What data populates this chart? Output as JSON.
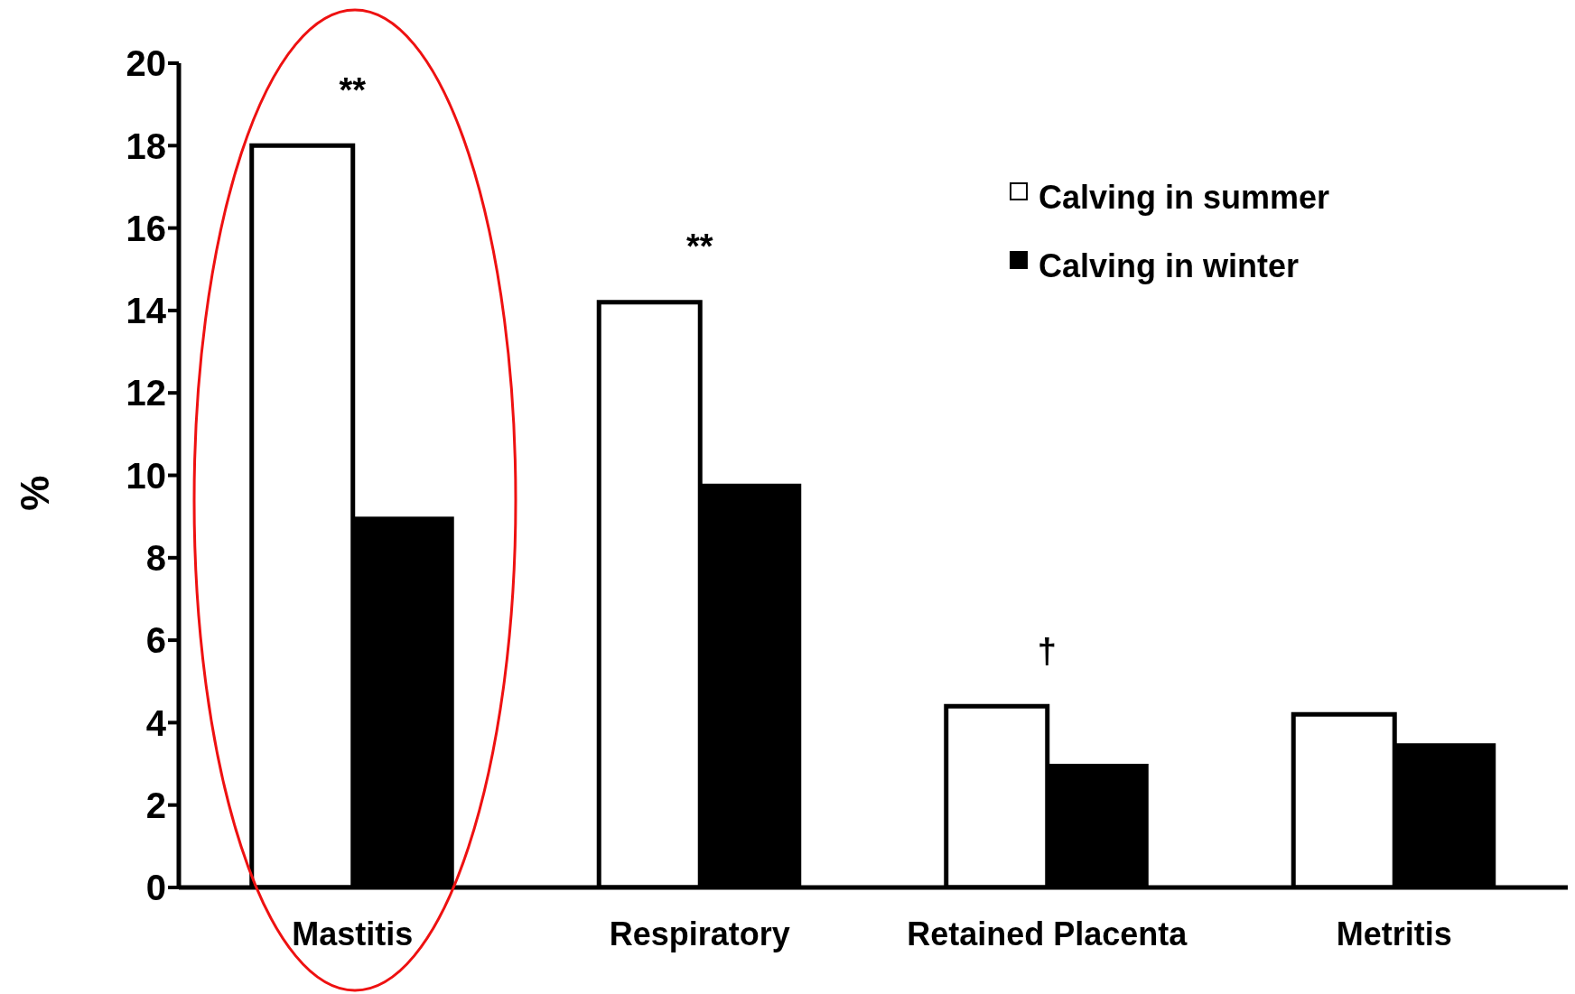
{
  "chart_data": {
    "type": "bar",
    "ylabel": "%",
    "categories": [
      "Mastitis",
      "Respiratory",
      "Retained Placenta",
      "Metritis"
    ],
    "series": [
      {
        "name": "Calving in summer",
        "color": "#ffffff",
        "values": [
          18.0,
          14.2,
          4.4,
          4.2
        ]
      },
      {
        "name": "Calving in winter",
        "color": "#000000",
        "values": [
          9.0,
          9.8,
          3.0,
          3.5
        ]
      }
    ],
    "ylim": [
      0,
      20
    ],
    "yticks": [
      0,
      2,
      4,
      6,
      8,
      10,
      12,
      14,
      16,
      18,
      20
    ],
    "grid": false,
    "legend": "top right",
    "annotations": [
      "**",
      "**",
      "†"
    ]
  }
}
